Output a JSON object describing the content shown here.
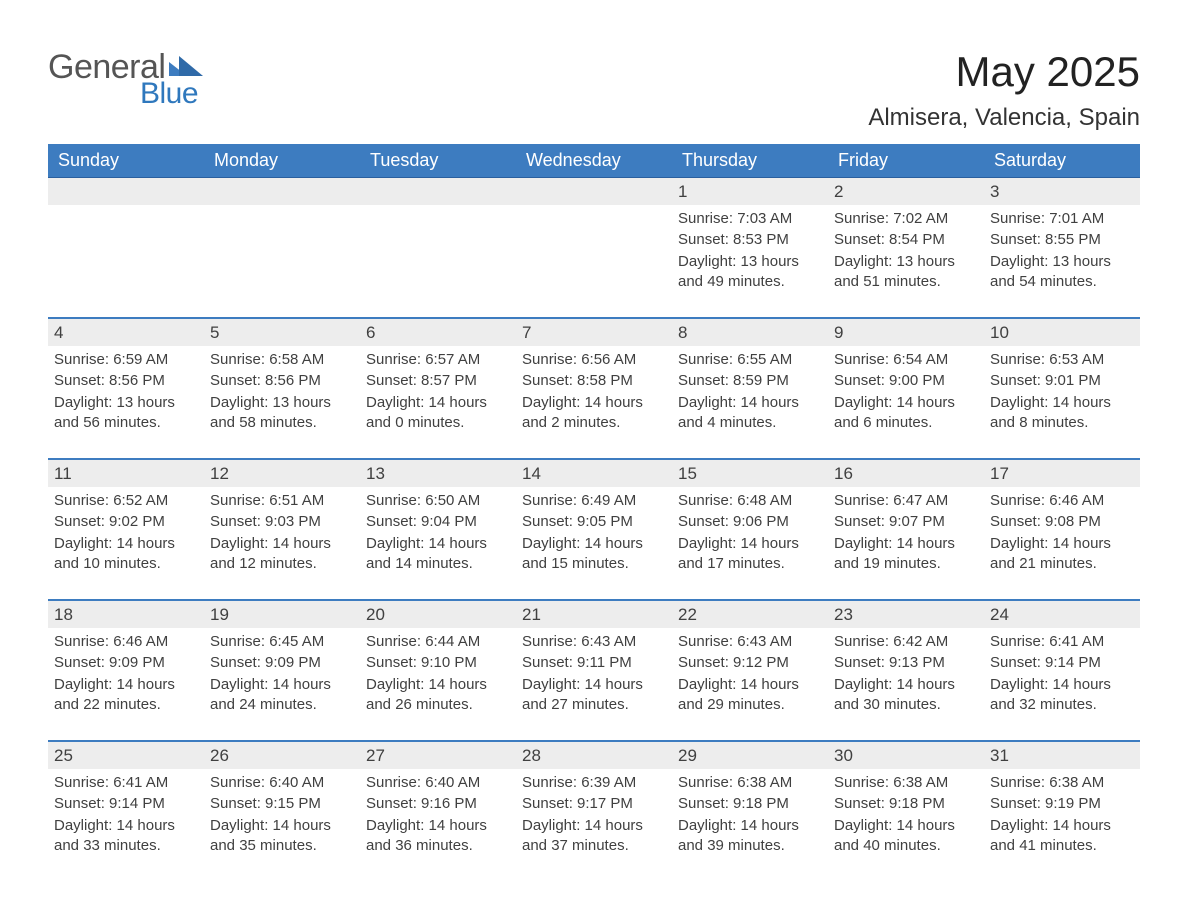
{
  "logo": {
    "word1": "General",
    "word2": "Blue",
    "tri_color": "#2f78bd"
  },
  "header": {
    "month_title": "May 2025",
    "location": "Almisera, Valencia, Spain"
  },
  "colors": {
    "header_bg": "#3d7cc0",
    "header_text": "#ffffff",
    "week_border": "#3d7cc0",
    "daynum_bg": "#ededed",
    "text": "#404040",
    "page_bg": "#ffffff"
  },
  "day_names": [
    "Sunday",
    "Monday",
    "Tuesday",
    "Wednesday",
    "Thursday",
    "Friday",
    "Saturday"
  ],
  "weeks": [
    [
      {
        "day": "",
        "sunrise": "",
        "sunset": "",
        "daylight": ""
      },
      {
        "day": "",
        "sunrise": "",
        "sunset": "",
        "daylight": ""
      },
      {
        "day": "",
        "sunrise": "",
        "sunset": "",
        "daylight": ""
      },
      {
        "day": "",
        "sunrise": "",
        "sunset": "",
        "daylight": ""
      },
      {
        "day": "1",
        "sunrise": "Sunrise: 7:03 AM",
        "sunset": "Sunset: 8:53 PM",
        "daylight": "Daylight: 13 hours and 49 minutes."
      },
      {
        "day": "2",
        "sunrise": "Sunrise: 7:02 AM",
        "sunset": "Sunset: 8:54 PM",
        "daylight": "Daylight: 13 hours and 51 minutes."
      },
      {
        "day": "3",
        "sunrise": "Sunrise: 7:01 AM",
        "sunset": "Sunset: 8:55 PM",
        "daylight": "Daylight: 13 hours and 54 minutes."
      }
    ],
    [
      {
        "day": "4",
        "sunrise": "Sunrise: 6:59 AM",
        "sunset": "Sunset: 8:56 PM",
        "daylight": "Daylight: 13 hours and 56 minutes."
      },
      {
        "day": "5",
        "sunrise": "Sunrise: 6:58 AM",
        "sunset": "Sunset: 8:56 PM",
        "daylight": "Daylight: 13 hours and 58 minutes."
      },
      {
        "day": "6",
        "sunrise": "Sunrise: 6:57 AM",
        "sunset": "Sunset: 8:57 PM",
        "daylight": "Daylight: 14 hours and 0 minutes."
      },
      {
        "day": "7",
        "sunrise": "Sunrise: 6:56 AM",
        "sunset": "Sunset: 8:58 PM",
        "daylight": "Daylight: 14 hours and 2 minutes."
      },
      {
        "day": "8",
        "sunrise": "Sunrise: 6:55 AM",
        "sunset": "Sunset: 8:59 PM",
        "daylight": "Daylight: 14 hours and 4 minutes."
      },
      {
        "day": "9",
        "sunrise": "Sunrise: 6:54 AM",
        "sunset": "Sunset: 9:00 PM",
        "daylight": "Daylight: 14 hours and 6 minutes."
      },
      {
        "day": "10",
        "sunrise": "Sunrise: 6:53 AM",
        "sunset": "Sunset: 9:01 PM",
        "daylight": "Daylight: 14 hours and 8 minutes."
      }
    ],
    [
      {
        "day": "11",
        "sunrise": "Sunrise: 6:52 AM",
        "sunset": "Sunset: 9:02 PM",
        "daylight": "Daylight: 14 hours and 10 minutes."
      },
      {
        "day": "12",
        "sunrise": "Sunrise: 6:51 AM",
        "sunset": "Sunset: 9:03 PM",
        "daylight": "Daylight: 14 hours and 12 minutes."
      },
      {
        "day": "13",
        "sunrise": "Sunrise: 6:50 AM",
        "sunset": "Sunset: 9:04 PM",
        "daylight": "Daylight: 14 hours and 14 minutes."
      },
      {
        "day": "14",
        "sunrise": "Sunrise: 6:49 AM",
        "sunset": "Sunset: 9:05 PM",
        "daylight": "Daylight: 14 hours and 15 minutes."
      },
      {
        "day": "15",
        "sunrise": "Sunrise: 6:48 AM",
        "sunset": "Sunset: 9:06 PM",
        "daylight": "Daylight: 14 hours and 17 minutes."
      },
      {
        "day": "16",
        "sunrise": "Sunrise: 6:47 AM",
        "sunset": "Sunset: 9:07 PM",
        "daylight": "Daylight: 14 hours and 19 minutes."
      },
      {
        "day": "17",
        "sunrise": "Sunrise: 6:46 AM",
        "sunset": "Sunset: 9:08 PM",
        "daylight": "Daylight: 14 hours and 21 minutes."
      }
    ],
    [
      {
        "day": "18",
        "sunrise": "Sunrise: 6:46 AM",
        "sunset": "Sunset: 9:09 PM",
        "daylight": "Daylight: 14 hours and 22 minutes."
      },
      {
        "day": "19",
        "sunrise": "Sunrise: 6:45 AM",
        "sunset": "Sunset: 9:09 PM",
        "daylight": "Daylight: 14 hours and 24 minutes."
      },
      {
        "day": "20",
        "sunrise": "Sunrise: 6:44 AM",
        "sunset": "Sunset: 9:10 PM",
        "daylight": "Daylight: 14 hours and 26 minutes."
      },
      {
        "day": "21",
        "sunrise": "Sunrise: 6:43 AM",
        "sunset": "Sunset: 9:11 PM",
        "daylight": "Daylight: 14 hours and 27 minutes."
      },
      {
        "day": "22",
        "sunrise": "Sunrise: 6:43 AM",
        "sunset": "Sunset: 9:12 PM",
        "daylight": "Daylight: 14 hours and 29 minutes."
      },
      {
        "day": "23",
        "sunrise": "Sunrise: 6:42 AM",
        "sunset": "Sunset: 9:13 PM",
        "daylight": "Daylight: 14 hours and 30 minutes."
      },
      {
        "day": "24",
        "sunrise": "Sunrise: 6:41 AM",
        "sunset": "Sunset: 9:14 PM",
        "daylight": "Daylight: 14 hours and 32 minutes."
      }
    ],
    [
      {
        "day": "25",
        "sunrise": "Sunrise: 6:41 AM",
        "sunset": "Sunset: 9:14 PM",
        "daylight": "Daylight: 14 hours and 33 minutes."
      },
      {
        "day": "26",
        "sunrise": "Sunrise: 6:40 AM",
        "sunset": "Sunset: 9:15 PM",
        "daylight": "Daylight: 14 hours and 35 minutes."
      },
      {
        "day": "27",
        "sunrise": "Sunrise: 6:40 AM",
        "sunset": "Sunset: 9:16 PM",
        "daylight": "Daylight: 14 hours and 36 minutes."
      },
      {
        "day": "28",
        "sunrise": "Sunrise: 6:39 AM",
        "sunset": "Sunset: 9:17 PM",
        "daylight": "Daylight: 14 hours and 37 minutes."
      },
      {
        "day": "29",
        "sunrise": "Sunrise: 6:38 AM",
        "sunset": "Sunset: 9:18 PM",
        "daylight": "Daylight: 14 hours and 39 minutes."
      },
      {
        "day": "30",
        "sunrise": "Sunrise: 6:38 AM",
        "sunset": "Sunset: 9:18 PM",
        "daylight": "Daylight: 14 hours and 40 minutes."
      },
      {
        "day": "31",
        "sunrise": "Sunrise: 6:38 AM",
        "sunset": "Sunset: 9:19 PM",
        "daylight": "Daylight: 14 hours and 41 minutes."
      }
    ]
  ]
}
